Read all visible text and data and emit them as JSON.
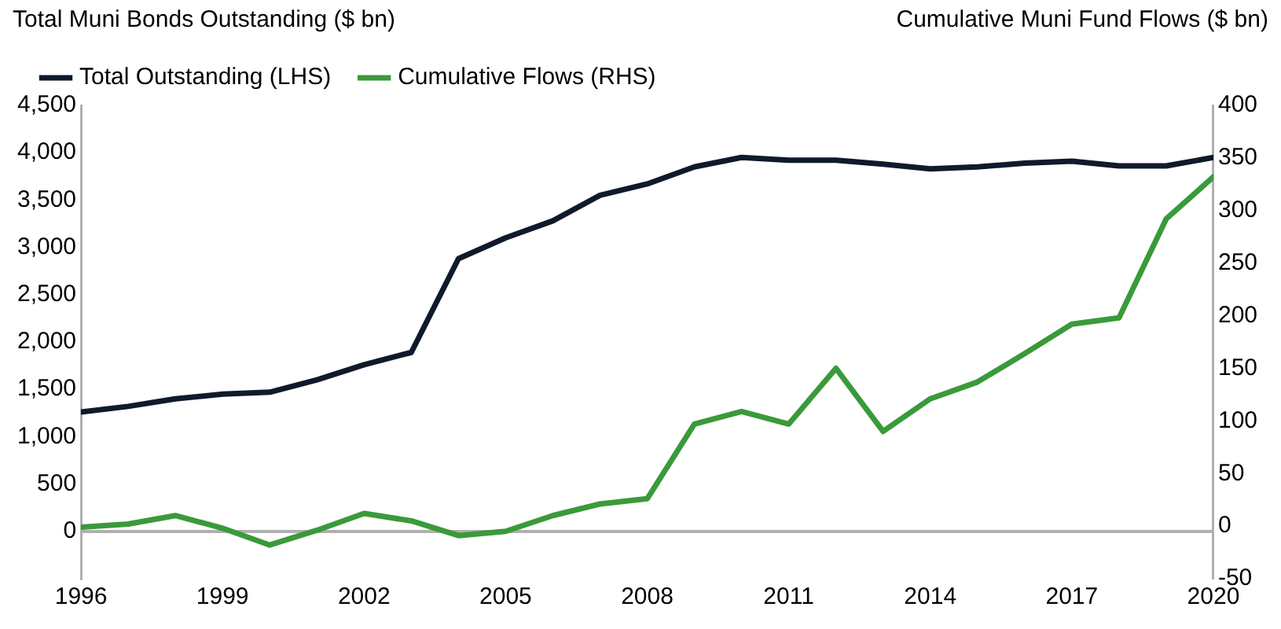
{
  "chart_data": {
    "type": "line",
    "ylabel": "Total Muni Bonds Outstanding ($ bn)",
    "y2label": "Cumulative Muni Fund Flows ($ bn)",
    "x": [
      1996,
      1997,
      1998,
      1999,
      2000,
      2001,
      2002,
      2003,
      2004,
      2005,
      2006,
      2007,
      2008,
      2009,
      2010,
      2011,
      2012,
      2013,
      2014,
      2015,
      2016,
      2017,
      2018,
      2019,
      2020
    ],
    "xlim": [
      1996,
      2020
    ],
    "xticks": [
      1996,
      1999,
      2002,
      2005,
      2008,
      2011,
      2014,
      2017,
      2020
    ],
    "ylim": [
      -500,
      4500
    ],
    "yticks": [
      0,
      500,
      {
        "value": 1000,
        "label": "1,000"
      },
      {
        "value": 1500,
        "label": "1,500"
      },
      {
        "value": 2000,
        "label": "2,000"
      },
      {
        "value": 2500,
        "label": "2,500"
      },
      {
        "value": 3000,
        "label": "3,000"
      },
      {
        "value": 3500,
        "label": "3,500"
      },
      {
        "value": 4000,
        "label": "4,000"
      },
      {
        "value": 4500,
        "label": "4,500"
      }
    ],
    "y2lim": [
      -50,
      400
    ],
    "y2ticks": [
      -50,
      0,
      50,
      100,
      150,
      200,
      250,
      300,
      350,
      400
    ],
    "series": [
      {
        "name": "Total Outstanding (LHS)",
        "color": "#0f1a2a",
        "values": [
          1260,
          1320,
          1400,
          1450,
          1470,
          1600,
          1760,
          1890,
          2880,
          3100,
          3280,
          3550,
          3670,
          3850,
          3950,
          3920,
          3920,
          3880,
          3830,
          3850,
          3890,
          3910,
          3860,
          3860,
          3950
        ]
      },
      {
        "name": "Cumulative Flows (RHS)",
        "color": "#3a9a3a",
        "axis": "y2",
        "values": [
          -1,
          2,
          10,
          -2,
          -18,
          -4,
          12,
          5,
          -9,
          -5,
          10,
          21,
          26,
          97,
          109,
          97,
          150,
          90,
          121,
          137,
          164,
          192,
          198,
          292,
          332
        ]
      }
    ],
    "grid": false,
    "legend": "top left",
    "line_style": "solid",
    "marker": "none"
  }
}
